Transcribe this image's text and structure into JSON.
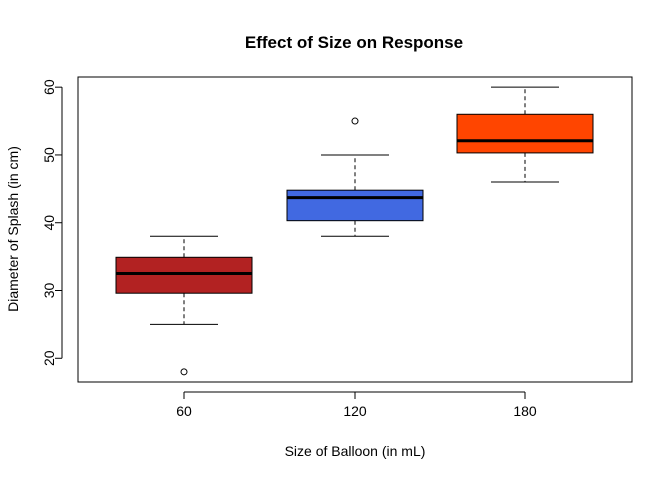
{
  "chart_data": {
    "type": "boxplot",
    "title": "Effect of Size on Response",
    "xlabel": "Size of Balloon (in mL)",
    "ylabel": "Diameter of Splash (in cm)",
    "categories": [
      "60",
      "120",
      "180"
    ],
    "y_ticks": [
      20,
      30,
      40,
      50,
      60
    ],
    "ylim": [
      16.5,
      61.5
    ],
    "grid": false,
    "legend": "none",
    "boxes": [
      {
        "category": "60",
        "color": "#B22222",
        "whisker_low": 25,
        "q1": 29.6,
        "median": 32.5,
        "q3": 34.9,
        "whisker_high": 38,
        "outliers": [
          18
        ]
      },
      {
        "category": "120",
        "color": "#4169E1",
        "whisker_low": 38,
        "q1": 40.3,
        "median": 43.7,
        "q3": 44.8,
        "whisker_high": 50,
        "outliers": [
          55
        ]
      },
      {
        "category": "180",
        "color": "#FF4500",
        "whisker_low": 46,
        "q1": 50.3,
        "median": 52.1,
        "q3": 56.0,
        "whisker_high": 60,
        "outliers": []
      }
    ]
  }
}
